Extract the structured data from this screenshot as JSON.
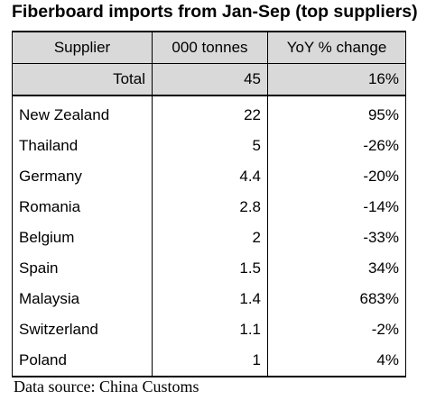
{
  "title": "Fiberboard imports from Jan-Sep (top suppliers)",
  "headers": {
    "supplier": "Supplier",
    "tonnes": "000 tonnes",
    "yoy": "YoY % change"
  },
  "total": {
    "label": "Total",
    "tonnes": "45",
    "yoy": "16%"
  },
  "rows": [
    {
      "supplier": "New Zealand",
      "tonnes": "22",
      "yoy": "95%"
    },
    {
      "supplier": "Thailand",
      "tonnes": "5",
      "yoy": "-26%"
    },
    {
      "supplier": "Germany",
      "tonnes": "4.4",
      "yoy": "-20%"
    },
    {
      "supplier": "Romania",
      "tonnes": "2.8",
      "yoy": "-14%"
    },
    {
      "supplier": "Belgium",
      "tonnes": "2",
      "yoy": "-33%"
    },
    {
      "supplier": "Spain",
      "tonnes": "1.5",
      "yoy": "34%"
    },
    {
      "supplier": "Malaysia",
      "tonnes": "1.4",
      "yoy": "683%"
    },
    {
      "supplier": "Switzerland",
      "tonnes": "1.1",
      "yoy": "-2%"
    },
    {
      "supplier": "Poland",
      "tonnes": "1",
      "yoy": "4%"
    }
  ],
  "source": "Data source: China Customs"
}
